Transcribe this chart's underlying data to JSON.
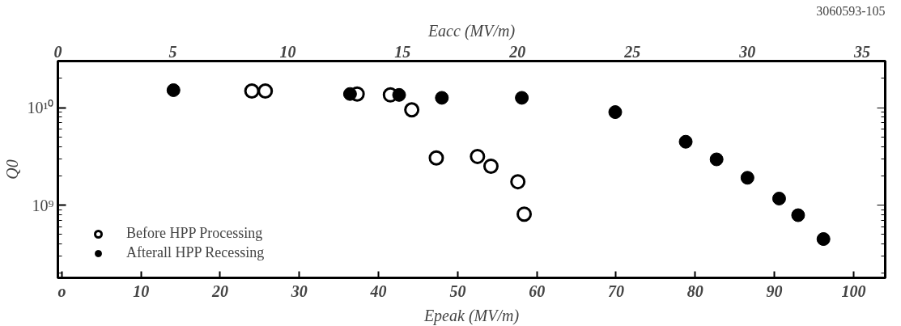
{
  "chart_data": {
    "type": "scatter",
    "xlabel": "Epeak (MV/m)",
    "x2label": "Eacc (MV/m)",
    "ylabel": "Q0",
    "xlim": [
      -0.5,
      104
    ],
    "xticks": [
      {
        "value": 0,
        "label": "o"
      },
      10,
      20,
      30,
      40,
      50,
      60,
      70,
      80,
      90,
      100
    ],
    "x2lim": [
      0,
      36
    ],
    "x2ticks": [
      0,
      5,
      10,
      15,
      20,
      25,
      30,
      35
    ],
    "ylim": [
      180000000,
      30000000000
    ],
    "yticks": [
      {
        "value": 1000000000,
        "label": "10⁹"
      },
      {
        "value": 10000000000,
        "label": "10¹⁰"
      }
    ],
    "log": "y",
    "grid": false,
    "marker": "circle",
    "legend": "bottom left",
    "annotations": [
      "3060593-105"
    ],
    "series": [
      {
        "name": "Before HPP Processing",
        "color": "#000000",
        "x": [
          24.0,
          25.7,
          37.3,
          41.5,
          44.2,
          47.3,
          52.5,
          54.2,
          57.6,
          58.4
        ],
        "values": [
          14800000000,
          14800000000,
          13800000000,
          13500000000,
          9500000000,
          3050000000,
          3160000000,
          2510000000,
          1740000000,
          810000000
        ]
      },
      {
        "name": "Afterall HPP Recessing",
        "color": "#000000",
        "x": [
          14.1,
          36.4,
          42.6,
          48.0,
          58.1,
          69.9,
          78.8,
          82.7,
          86.6,
          90.6,
          93.0,
          96.2
        ],
        "values": [
          15100000000,
          13800000000,
          13500000000,
          12600000000,
          12600000000,
          9000000000,
          4470000000,
          2950000000,
          1910000000,
          1170000000,
          790000000,
          450000000
        ]
      }
    ]
  }
}
